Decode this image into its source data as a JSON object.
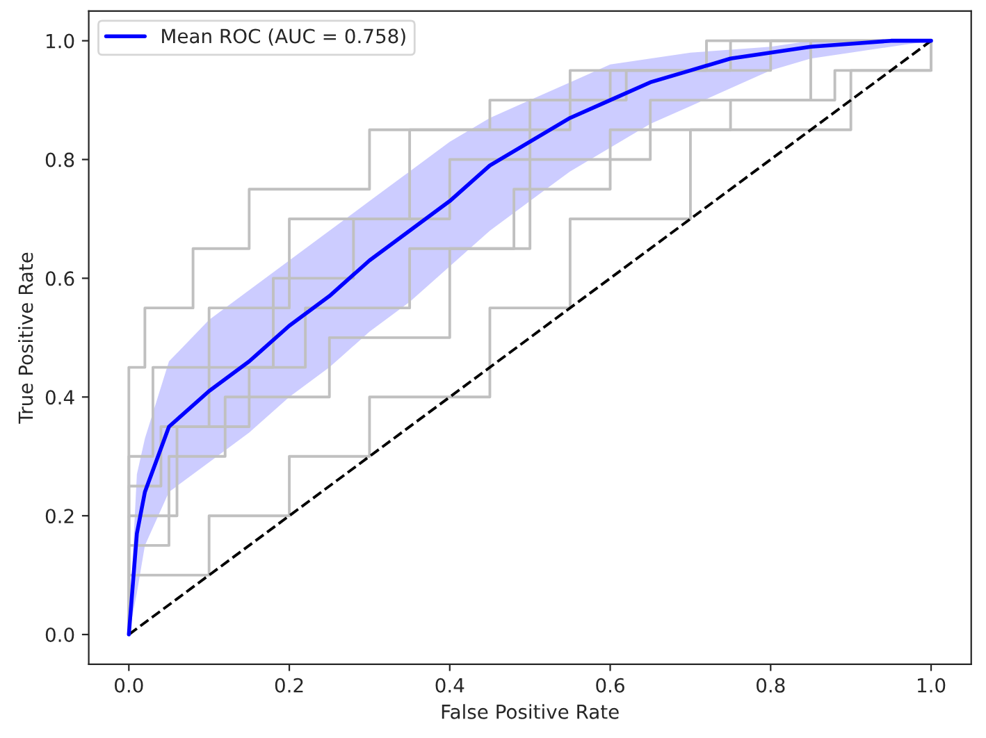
{
  "chart_data": {
    "type": "line",
    "xlabel": "False Positive Rate",
    "ylabel": "True Positive Rate",
    "xlim": [
      -0.05,
      1.05
    ],
    "ylim": [
      -0.05,
      1.05
    ],
    "xticks": [
      {
        "value": 0,
        "label": "0.0"
      },
      {
        "value": 0.2,
        "label": "0.2"
      },
      {
        "value": 0.4,
        "label": "0.4"
      },
      {
        "value": 0.6,
        "label": "0.6"
      },
      {
        "value": 0.8,
        "label": "0.8"
      },
      {
        "value": 1,
        "label": "1.0"
      }
    ],
    "yticks": [
      {
        "value": 0,
        "label": "0.0"
      },
      {
        "value": 0.2,
        "label": "0.2"
      },
      {
        "value": 0.4,
        "label": "0.4"
      },
      {
        "value": 0.6,
        "label": "0.6"
      },
      {
        "value": 0.8,
        "label": "0.8"
      },
      {
        "value": 1,
        "label": "1.0"
      }
    ],
    "grid": false,
    "legend": "top left",
    "series": [
      {
        "type": "step",
        "color": "#c0c0c0",
        "x": [
          0,
          0,
          0.03,
          0.1,
          0.2,
          0.35,
          0.55,
          0.75,
          1
        ],
        "values": [
          0,
          0.3,
          0.45,
          0.55,
          0.7,
          0.85,
          0.95,
          1,
          1
        ]
      },
      {
        "type": "step",
        "color": "#c0c0c0",
        "x": [
          0,
          0,
          0.05,
          0.12,
          0.25,
          0.4,
          0.5,
          0.65,
          0.85,
          1
        ],
        "values": [
          0,
          0.15,
          0.3,
          0.4,
          0.5,
          0.65,
          0.8,
          0.9,
          1,
          1
        ]
      },
      {
        "type": "step",
        "color": "#c0c0c0",
        "x": [
          0,
          0,
          0.02,
          0.08,
          0.15,
          0.3,
          0.45,
          0.6,
          0.8,
          1
        ],
        "values": [
          0,
          0.45,
          0.55,
          0.65,
          0.75,
          0.85,
          0.9,
          0.95,
          1,
          1
        ]
      },
      {
        "type": "step",
        "color": "#c0c0c0",
        "x": [
          0,
          0,
          0.1,
          0.2,
          0.3,
          0.45,
          0.55,
          0.7,
          0.9,
          1
        ],
        "values": [
          0,
          0.1,
          0.2,
          0.3,
          0.4,
          0.55,
          0.7,
          0.85,
          0.95,
          1
        ]
      },
      {
        "type": "step",
        "color": "#c0c0c0",
        "x": [
          0,
          0,
          0.04,
          0.1,
          0.18,
          0.28,
          0.4,
          0.5,
          0.62,
          0.72,
          1
        ],
        "values": [
          0,
          0.25,
          0.35,
          0.45,
          0.6,
          0.7,
          0.8,
          0.9,
          0.95,
          1,
          1
        ]
      },
      {
        "type": "step",
        "color": "#c0c0c0",
        "x": [
          0,
          0,
          0.06,
          0.15,
          0.22,
          0.35,
          0.48,
          0.6,
          0.75,
          0.88,
          1
        ],
        "values": [
          0,
          0.2,
          0.35,
          0.45,
          0.55,
          0.65,
          0.75,
          0.85,
          0.9,
          0.95,
          1
        ]
      },
      {
        "color": "#000000",
        "line_style": "dashed",
        "x": [
          0,
          1
        ],
        "values": [
          0,
          1
        ]
      },
      {
        "name": "Mean ROC (AUC = 0.758)",
        "color": "#0000ff",
        "x": [
          0,
          0.01,
          0.02,
          0.05,
          0.1,
          0.15,
          0.2,
          0.25,
          0.3,
          0.35,
          0.4,
          0.45,
          0.5,
          0.55,
          0.6,
          0.65,
          0.7,
          0.75,
          0.8,
          0.85,
          0.9,
          0.95,
          1
        ],
        "values": [
          0,
          0.17,
          0.24,
          0.35,
          0.41,
          0.46,
          0.52,
          0.57,
          0.63,
          0.68,
          0.73,
          0.79,
          0.83,
          0.87,
          0.9,
          0.93,
          0.95,
          0.97,
          0.98,
          0.99,
          0.995,
          1,
          1
        ],
        "lower": [
          0,
          0.07,
          0.15,
          0.24,
          0.29,
          0.34,
          0.4,
          0.45,
          0.51,
          0.56,
          0.62,
          0.68,
          0.73,
          0.78,
          0.82,
          0.86,
          0.89,
          0.92,
          0.95,
          0.97,
          0.98,
          0.99,
          1
        ],
        "upper": [
          0,
          0.27,
          0.33,
          0.46,
          0.53,
          0.58,
          0.63,
          0.68,
          0.73,
          0.78,
          0.83,
          0.87,
          0.9,
          0.93,
          0.96,
          0.97,
          0.98,
          0.985,
          0.99,
          1,
          1,
          1,
          1
        ]
      }
    ]
  }
}
